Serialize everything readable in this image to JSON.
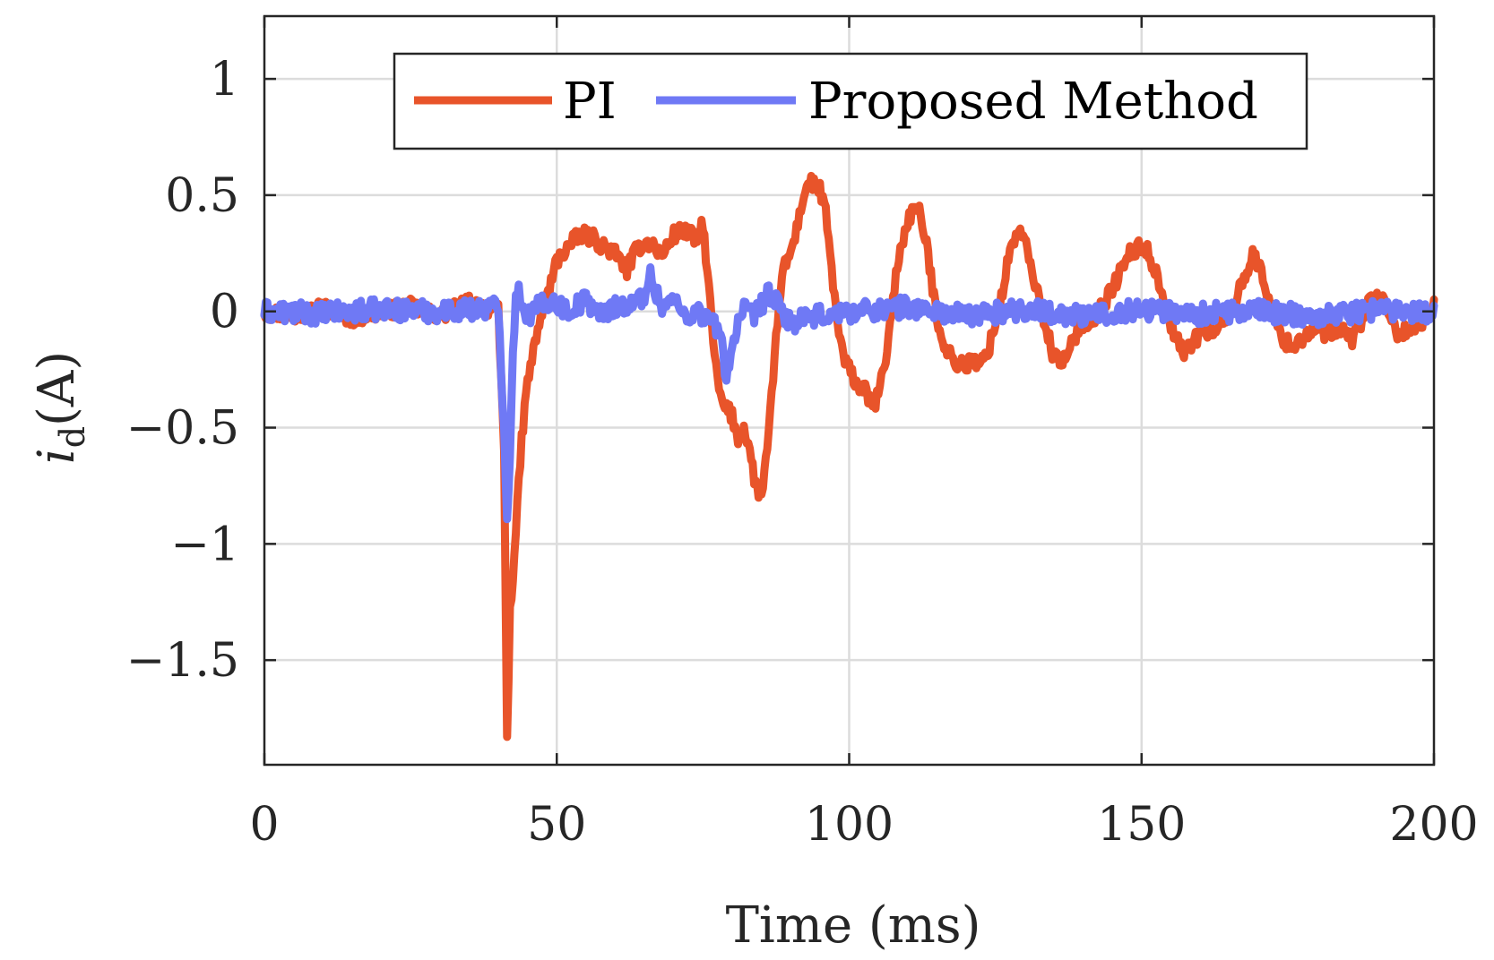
{
  "chart_data": {
    "type": "line",
    "title": "",
    "xlabel": "Time (ms)",
    "ylabel_main": "i",
    "ylabel_sub": "d",
    "ylabel_tail": "(A)",
    "xlim": [
      0,
      200
    ],
    "ylim": [
      -1.95,
      1.27
    ],
    "grid": true,
    "legend_position": "top",
    "x_ticks": [
      0,
      50,
      100,
      150,
      200
    ],
    "x_tick_labels": [
      "0",
      "50",
      "100",
      "150",
      "200"
    ],
    "y_ticks": [
      1,
      0.5,
      0,
      -0.5,
      -1,
      -1.5
    ],
    "y_tick_labels": [
      "1",
      "0.5",
      "0",
      "−0.5",
      "−1",
      "−1.5"
    ],
    "series": [
      {
        "name": "PI",
        "color": "#e8542a",
        "noise": 0.035,
        "x": [
          0,
          5,
          10,
          15,
          20,
          25,
          30,
          35,
          40,
          41,
          41.5,
          42,
          43,
          44,
          45,
          47,
          49,
          50,
          52,
          54,
          56,
          58,
          60,
          62,
          64,
          66,
          68,
          70,
          72,
          74,
          75,
          76,
          77,
          78,
          79,
          80,
          81,
          82,
          83,
          84,
          85,
          86,
          87,
          88,
          89,
          90,
          91,
          92,
          93,
          94,
          95,
          96,
          97,
          98,
          99,
          100,
          101,
          102,
          103,
          104,
          105,
          106,
          107,
          108,
          109,
          110,
          111,
          112,
          113,
          114,
          115,
          116,
          117,
          118,
          119,
          120,
          121,
          122,
          123,
          124,
          125,
          126,
          127,
          128,
          129,
          130,
          131,
          132,
          133,
          134,
          135,
          136,
          137,
          138,
          139,
          140,
          142,
          144,
          146,
          148,
          150,
          151,
          152,
          153,
          154,
          155,
          156,
          157,
          158,
          159,
          160,
          162,
          164,
          166,
          168,
          169,
          170,
          171,
          172,
          173,
          174,
          176,
          178,
          180,
          182,
          184,
          186,
          188,
          189,
          190,
          191,
          192,
          193,
          194,
          196,
          198,
          200
        ],
        "values": [
          0.0,
          -0.02,
          0.02,
          -0.03,
          0.0,
          0.02,
          -0.02,
          0.04,
          0.0,
          -0.6,
          -1.85,
          -1.3,
          -0.95,
          -0.55,
          -0.3,
          -0.05,
          0.12,
          0.22,
          0.28,
          0.33,
          0.32,
          0.28,
          0.25,
          0.18,
          0.28,
          0.3,
          0.24,
          0.33,
          0.35,
          0.3,
          0.38,
          0.1,
          -0.2,
          -0.38,
          -0.42,
          -0.45,
          -0.55,
          -0.5,
          -0.6,
          -0.75,
          -0.8,
          -0.6,
          -0.3,
          0.05,
          0.2,
          0.25,
          0.35,
          0.48,
          0.55,
          0.55,
          0.52,
          0.42,
          0.18,
          -0.05,
          -0.2,
          -0.25,
          -0.3,
          -0.33,
          -0.35,
          -0.42,
          -0.35,
          -0.25,
          -0.05,
          0.15,
          0.3,
          0.38,
          0.45,
          0.42,
          0.32,
          0.15,
          -0.02,
          -0.12,
          -0.18,
          -0.22,
          -0.22,
          -0.24,
          -0.2,
          -0.25,
          -0.2,
          -0.15,
          -0.05,
          0.05,
          0.2,
          0.3,
          0.35,
          0.3,
          0.2,
          0.1,
          0.0,
          -0.1,
          -0.2,
          -0.2,
          -0.22,
          -0.15,
          -0.08,
          -0.05,
          -0.02,
          0.05,
          0.15,
          0.25,
          0.28,
          0.26,
          0.2,
          0.12,
          0.05,
          -0.05,
          -0.12,
          -0.18,
          -0.15,
          -0.12,
          -0.1,
          -0.08,
          -0.05,
          0.05,
          0.18,
          0.24,
          0.2,
          0.12,
          0.05,
          -0.05,
          -0.12,
          -0.15,
          -0.1,
          -0.08,
          -0.1,
          -0.08,
          -0.12,
          -0.02,
          0.05,
          0.06,
          0.05,
          0.0,
          -0.05,
          -0.1,
          -0.08,
          -0.05,
          0.02
        ]
      },
      {
        "name": "Proposed Method",
        "color": "#6f79f5",
        "noise": 0.045,
        "x": [
          0,
          10,
          20,
          30,
          40,
          41,
          41.5,
          42,
          42.5,
          43,
          44,
          45,
          47,
          49,
          52,
          55,
          58,
          60,
          63,
          65,
          66,
          68,
          70,
          72,
          74,
          76,
          78,
          79,
          80,
          81,
          82,
          84,
          86,
          88,
          90,
          95,
          100,
          110,
          120,
          130,
          140,
          150,
          160,
          170,
          180,
          190,
          200
        ],
        "values": [
          0.0,
          -0.01,
          0.01,
          0.0,
          0.02,
          -0.5,
          -0.88,
          -0.6,
          -0.2,
          0.1,
          0.05,
          -0.02,
          0.02,
          0.05,
          0.0,
          0.05,
          -0.02,
          0.03,
          0.02,
          0.08,
          0.15,
          0.02,
          0.05,
          -0.02,
          0.0,
          -0.03,
          -0.1,
          -0.28,
          -0.15,
          -0.05,
          0.0,
          -0.02,
          0.08,
          0.02,
          -0.05,
          -0.02,
          0.0,
          0.02,
          -0.02,
          0.01,
          -0.02,
          0.01,
          -0.01,
          0.0,
          -0.02,
          0.01,
          0.0
        ]
      }
    ]
  }
}
